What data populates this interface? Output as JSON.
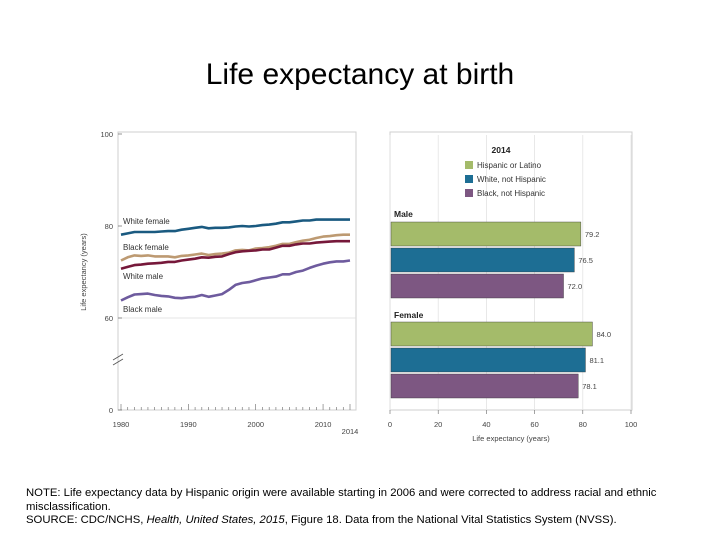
{
  "title": "Life expectancy at birth",
  "chart_data": [
    {
      "type": "line",
      "ylabel": "Life expectancy (years)",
      "ylim": [
        0,
        100
      ],
      "y_axis_break": [
        0,
        60
      ],
      "yticks": [
        "0",
        "60",
        "80",
        "100"
      ],
      "xticks": [
        "1980",
        "1990",
        "2000",
        "2010",
        "2014"
      ],
      "x": [
        1980,
        1981,
        1982,
        1983,
        1984,
        1985,
        1986,
        1987,
        1988,
        1989,
        1990,
        1991,
        1992,
        1993,
        1994,
        1995,
        1996,
        1997,
        1998,
        1999,
        2000,
        2001,
        2002,
        2003,
        2004,
        2005,
        2006,
        2007,
        2008,
        2009,
        2010,
        2011,
        2012,
        2013,
        2014
      ],
      "series": [
        {
          "name": "White female",
          "color": "#1a5a80",
          "values": [
            78.1,
            78.4,
            78.7,
            78.7,
            78.7,
            78.7,
            78.8,
            78.9,
            78.9,
            79.2,
            79.4,
            79.6,
            79.8,
            79.5,
            79.6,
            79.6,
            79.7,
            79.9,
            80.0,
            79.9,
            80.0,
            80.2,
            80.3,
            80.5,
            80.8,
            80.8,
            81.0,
            81.2,
            81.2,
            81.4,
            81.4,
            81.4,
            81.4,
            81.4,
            81.4
          ]
        },
        {
          "name": "Black female",
          "color": "#bd9a72",
          "values": [
            72.5,
            73.2,
            73.6,
            73.5,
            73.6,
            73.4,
            73.4,
            73.4,
            73.2,
            73.5,
            73.6,
            73.8,
            74.0,
            73.7,
            73.9,
            74.0,
            74.2,
            74.7,
            74.8,
            74.7,
            75.1,
            75.2,
            75.4,
            75.7,
            76.1,
            76.1,
            76.5,
            76.8,
            77.0,
            77.4,
            77.7,
            77.8,
            78.0,
            78.1,
            78.1
          ]
        },
        {
          "name": "White male",
          "color": "#76183a",
          "values": [
            70.7,
            71.1,
            71.5,
            71.6,
            71.8,
            71.9,
            72.0,
            72.2,
            72.2,
            72.5,
            72.7,
            72.9,
            73.2,
            73.1,
            73.3,
            73.4,
            73.9,
            74.3,
            74.5,
            74.6,
            74.7,
            74.9,
            74.9,
            75.3,
            75.7,
            75.7,
            76.0,
            76.2,
            76.2,
            76.4,
            76.5,
            76.6,
            76.7,
            76.7,
            76.7
          ]
        },
        {
          "name": "Black male",
          "color": "#6e5b9e",
          "values": [
            63.8,
            64.5,
            65.1,
            65.2,
            65.3,
            65.0,
            64.8,
            64.7,
            64.4,
            64.3,
            64.5,
            64.6,
            65.0,
            64.6,
            64.9,
            65.2,
            66.1,
            67.2,
            67.6,
            67.8,
            68.2,
            68.6,
            68.8,
            69.0,
            69.5,
            69.5,
            70.0,
            70.3,
            70.9,
            71.4,
            71.8,
            72.1,
            72.3,
            72.3,
            72.5
          ]
        }
      ]
    },
    {
      "type": "bar",
      "orientation": "horizontal",
      "title": "2014",
      "xlabel": "Life expectancy (years)",
      "xlim": [
        0,
        100
      ],
      "xticks": [
        "0",
        "20",
        "40",
        "60",
        "80",
        "100"
      ],
      "legend": [
        {
          "name": "Hispanic or Latino",
          "color": "#a4bb6a"
        },
        {
          "name": "White, not Hispanic",
          "color": "#1d6e94"
        },
        {
          "name": "Black, not Hispanic",
          "color": "#7d5782"
        }
      ],
      "groups": [
        {
          "name": "Male",
          "values": [
            79.2,
            76.5,
            72.0
          ],
          "labels": [
            "79.2",
            "76.5",
            "72.0"
          ]
        },
        {
          "name": "Female",
          "values": [
            84.0,
            81.1,
            78.1
          ],
          "labels": [
            "84.0",
            "81.1",
            "78.1"
          ]
        }
      ]
    }
  ],
  "note": {
    "line1": "NOTE: Life expectancy data by Hispanic origin were available starting in 2006 and were corrected to address racial and ethnic misclassification.",
    "source_prefix": "SOURCE: CDC/NCHS, ",
    "source_italic": "Health, United States, 2015",
    "source_suffix": ", Figure 18. Data from the National Vital Statistics System (NVSS)."
  }
}
